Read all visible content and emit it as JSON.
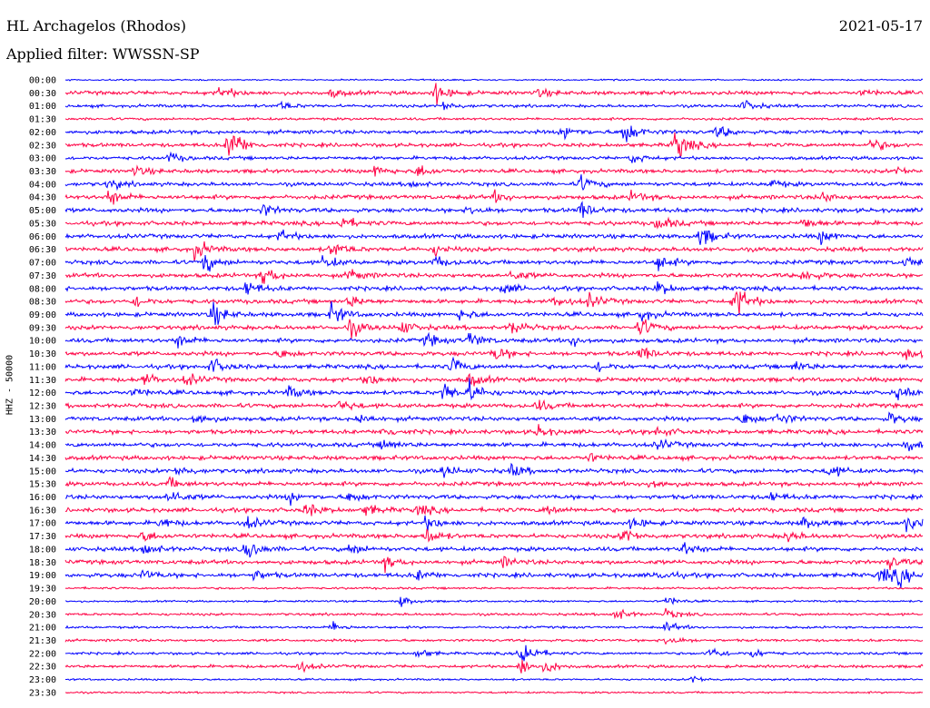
{
  "header": {
    "station": "HL Archagelos (Rhodos)",
    "filter": "Applied filter: WWSSN-SP",
    "date": "2021-05-17"
  },
  "chart_data": {
    "type": "line",
    "title": "HL Archagelos (Rhodos)",
    "subtitle": "Applied filter: WWSSN-SP",
    "date": "2021-05-17",
    "ylabel": "HHZ - 50000",
    "xlabel": "",
    "grid": false,
    "trace_colors": [
      "#0000ff",
      "#ff0044"
    ],
    "time_labels": [
      "00:00",
      "00:30",
      "01:00",
      "01:30",
      "02:00",
      "02:30",
      "03:00",
      "03:30",
      "04:00",
      "04:30",
      "05:00",
      "05:30",
      "06:00",
      "06:30",
      "07:00",
      "07:30",
      "08:00",
      "08:30",
      "09:00",
      "09:30",
      "10:00",
      "10:30",
      "11:00",
      "11:30",
      "12:00",
      "12:30",
      "13:00",
      "13:30",
      "14:00",
      "14:30",
      "15:00",
      "15:30",
      "16:00",
      "16:30",
      "17:00",
      "17:30",
      "18:00",
      "18:30",
      "19:00",
      "19:30",
      "20:00",
      "20:30",
      "21:00",
      "21:30",
      "22:00",
      "22:30",
      "23:00",
      "23:30"
    ],
    "x_range_fraction": [
      0,
      1
    ],
    "noise_level_by_row": [
      0.35,
      0.9,
      0.7,
      0.6,
      0.9,
      0.9,
      0.8,
      0.9,
      0.9,
      1.0,
      1.0,
      1.0,
      1.0,
      1.0,
      1.0,
      1.0,
      1.0,
      1.0,
      1.0,
      1.0,
      1.0,
      1.0,
      1.0,
      1.0,
      1.0,
      1.0,
      1.0,
      1.0,
      1.0,
      1.0,
      1.0,
      1.0,
      1.0,
      1.0,
      1.0,
      1.0,
      1.0,
      1.0,
      1.0,
      0.5,
      0.45,
      0.6,
      0.55,
      0.6,
      0.6,
      0.7,
      0.45,
      0.45
    ],
    "events": [
      {
        "row": 1,
        "t": 0.18,
        "amp": 1.6
      },
      {
        "row": 1,
        "t": 0.31,
        "amp": 1.0
      },
      {
        "row": 1,
        "t": 0.43,
        "amp": 2.6
      },
      {
        "row": 1,
        "t": 0.55,
        "amp": 1.0
      },
      {
        "row": 1,
        "t": 0.93,
        "amp": 0.8
      },
      {
        "row": 2,
        "t": 0.25,
        "amp": 1.0
      },
      {
        "row": 2,
        "t": 0.44,
        "amp": 1.3
      },
      {
        "row": 2,
        "t": 0.79,
        "amp": 1.5
      },
      {
        "row": 4,
        "t": 0.58,
        "amp": 2.0
      },
      {
        "row": 4,
        "t": 0.65,
        "amp": 3.5
      },
      {
        "row": 4,
        "t": 0.76,
        "amp": 1.6
      },
      {
        "row": 5,
        "t": 0.19,
        "amp": 5.5
      },
      {
        "row": 5,
        "t": 0.71,
        "amp": 4.5
      },
      {
        "row": 5,
        "t": 0.94,
        "amp": 1.6
      },
      {
        "row": 6,
        "t": 0.12,
        "amp": 1.3
      },
      {
        "row": 6,
        "t": 0.66,
        "amp": 1.3
      },
      {
        "row": 7,
        "t": 0.08,
        "amp": 1.2
      },
      {
        "row": 7,
        "t": 0.36,
        "amp": 1.4
      },
      {
        "row": 7,
        "t": 0.41,
        "amp": 1.6
      },
      {
        "row": 7,
        "t": 0.97,
        "amp": 1.0
      },
      {
        "row": 8,
        "t": 0.05,
        "amp": 1.3
      },
      {
        "row": 8,
        "t": 0.4,
        "amp": 1.1
      },
      {
        "row": 8,
        "t": 0.6,
        "amp": 2.0
      },
      {
        "row": 8,
        "t": 0.82,
        "amp": 1.2
      },
      {
        "row": 9,
        "t": 0.05,
        "amp": 2.0
      },
      {
        "row": 9,
        "t": 0.5,
        "amp": 1.3
      },
      {
        "row": 9,
        "t": 0.66,
        "amp": 1.4
      },
      {
        "row": 9,
        "t": 0.88,
        "amp": 1.3
      },
      {
        "row": 10,
        "t": 0.23,
        "amp": 1.4
      },
      {
        "row": 10,
        "t": 0.47,
        "amp": 1.4
      },
      {
        "row": 10,
        "t": 0.6,
        "amp": 2.0
      },
      {
        "row": 11,
        "t": 0.32,
        "amp": 1.8
      },
      {
        "row": 11,
        "t": 0.69,
        "amp": 2.0
      },
      {
        "row": 11,
        "t": 0.86,
        "amp": 1.4
      },
      {
        "row": 12,
        "t": 0.25,
        "amp": 1.4
      },
      {
        "row": 12,
        "t": 0.74,
        "amp": 2.6
      },
      {
        "row": 12,
        "t": 0.88,
        "amp": 1.6
      },
      {
        "row": 13,
        "t": 0.15,
        "amp": 2.5
      },
      {
        "row": 13,
        "t": 0.31,
        "amp": 2.0
      },
      {
        "row": 13,
        "t": 0.43,
        "amp": 1.3
      },
      {
        "row": 14,
        "t": 0.16,
        "amp": 2.5
      },
      {
        "row": 14,
        "t": 0.3,
        "amp": 1.7
      },
      {
        "row": 14,
        "t": 0.43,
        "amp": 1.4
      },
      {
        "row": 14,
        "t": 0.69,
        "amp": 2.0
      },
      {
        "row": 14,
        "t": 0.98,
        "amp": 1.3
      },
      {
        "row": 15,
        "t": 0.23,
        "amp": 2.4
      },
      {
        "row": 15,
        "t": 0.33,
        "amp": 1.7
      },
      {
        "row": 15,
        "t": 0.52,
        "amp": 1.3
      },
      {
        "row": 15,
        "t": 0.86,
        "amp": 1.8
      },
      {
        "row": 16,
        "t": 0.21,
        "amp": 2.0
      },
      {
        "row": 16,
        "t": 0.51,
        "amp": 1.3
      },
      {
        "row": 16,
        "t": 0.69,
        "amp": 1.7
      },
      {
        "row": 17,
        "t": 0.08,
        "amp": 1.4
      },
      {
        "row": 17,
        "t": 0.33,
        "amp": 1.4
      },
      {
        "row": 17,
        "t": 0.57,
        "amp": 1.4
      },
      {
        "row": 17,
        "t": 0.61,
        "amp": 1.7
      },
      {
        "row": 17,
        "t": 0.78,
        "amp": 4.5
      },
      {
        "row": 18,
        "t": 0.17,
        "amp": 3.0
      },
      {
        "row": 18,
        "t": 0.31,
        "amp": 2.6
      },
      {
        "row": 18,
        "t": 0.46,
        "amp": 1.5
      },
      {
        "row": 18,
        "t": 0.67,
        "amp": 1.4
      },
      {
        "row": 19,
        "t": 0.33,
        "amp": 2.3
      },
      {
        "row": 19,
        "t": 0.39,
        "amp": 1.8
      },
      {
        "row": 19,
        "t": 0.52,
        "amp": 1.8
      },
      {
        "row": 19,
        "t": 0.67,
        "amp": 2.3
      },
      {
        "row": 20,
        "t": 0.13,
        "amp": 1.6
      },
      {
        "row": 20,
        "t": 0.42,
        "amp": 1.6
      },
      {
        "row": 20,
        "t": 0.47,
        "amp": 2.0
      },
      {
        "row": 20,
        "t": 0.59,
        "amp": 1.4
      },
      {
        "row": 21,
        "t": 0.25,
        "amp": 1.2
      },
      {
        "row": 21,
        "t": 0.5,
        "amp": 2.0
      },
      {
        "row": 21,
        "t": 0.67,
        "amp": 1.8
      },
      {
        "row": 21,
        "t": 0.98,
        "amp": 1.3
      },
      {
        "row": 22,
        "t": 0.17,
        "amp": 2.0
      },
      {
        "row": 22,
        "t": 0.45,
        "amp": 2.0
      },
      {
        "row": 22,
        "t": 0.62,
        "amp": 1.2
      },
      {
        "row": 22,
        "t": 0.85,
        "amp": 1.3
      },
      {
        "row": 23,
        "t": 0.09,
        "amp": 1.5
      },
      {
        "row": 23,
        "t": 0.14,
        "amp": 1.5
      },
      {
        "row": 23,
        "t": 0.35,
        "amp": 1.5
      },
      {
        "row": 23,
        "t": 0.47,
        "amp": 1.8
      },
      {
        "row": 24,
        "t": 0.08,
        "amp": 1.2
      },
      {
        "row": 24,
        "t": 0.26,
        "amp": 1.4
      },
      {
        "row": 24,
        "t": 0.44,
        "amp": 2.6
      },
      {
        "row": 24,
        "t": 0.47,
        "amp": 2.6
      },
      {
        "row": 24,
        "t": 0.97,
        "amp": 1.4
      },
      {
        "row": 25,
        "t": 0.32,
        "amp": 1.4
      },
      {
        "row": 25,
        "t": 0.55,
        "amp": 1.3
      },
      {
        "row": 26,
        "t": 0.15,
        "amp": 1.5
      },
      {
        "row": 26,
        "t": 0.34,
        "amp": 1.4
      },
      {
        "row": 26,
        "t": 0.79,
        "amp": 1.8
      },
      {
        "row": 26,
        "t": 0.83,
        "amp": 1.5
      },
      {
        "row": 26,
        "t": 0.96,
        "amp": 1.5
      },
      {
        "row": 27,
        "t": 0.37,
        "amp": 1.3
      },
      {
        "row": 27,
        "t": 0.55,
        "amp": 1.5
      },
      {
        "row": 27,
        "t": 0.69,
        "amp": 1.4
      },
      {
        "row": 28,
        "t": 0.37,
        "amp": 1.5
      },
      {
        "row": 28,
        "t": 0.69,
        "amp": 1.3
      },
      {
        "row": 28,
        "t": 0.98,
        "amp": 1.8
      },
      {
        "row": 29,
        "t": 0.61,
        "amp": 1.0
      },
      {
        "row": 30,
        "t": 0.13,
        "amp": 1.3
      },
      {
        "row": 30,
        "t": 0.44,
        "amp": 1.5
      },
      {
        "row": 30,
        "t": 0.52,
        "amp": 1.5
      },
      {
        "row": 30,
        "t": 0.89,
        "amp": 1.7
      },
      {
        "row": 31,
        "t": 0.12,
        "amp": 1.2
      },
      {
        "row": 31,
        "t": 0.68,
        "amp": 1.5
      },
      {
        "row": 32,
        "t": 0.12,
        "amp": 2.0
      },
      {
        "row": 32,
        "t": 0.26,
        "amp": 1.3
      },
      {
        "row": 32,
        "t": 0.33,
        "amp": 1.4
      },
      {
        "row": 32,
        "t": 0.82,
        "amp": 1.2
      },
      {
        "row": 33,
        "t": 0.28,
        "amp": 1.7
      },
      {
        "row": 33,
        "t": 0.35,
        "amp": 1.4
      },
      {
        "row": 33,
        "t": 0.41,
        "amp": 1.5
      },
      {
        "row": 33,
        "t": 0.56,
        "amp": 1.3
      },
      {
        "row": 34,
        "t": 0.11,
        "amp": 1.3
      },
      {
        "row": 34,
        "t": 0.21,
        "amp": 1.6
      },
      {
        "row": 34,
        "t": 0.42,
        "amp": 1.7
      },
      {
        "row": 34,
        "t": 0.66,
        "amp": 1.5
      },
      {
        "row": 34,
        "t": 0.86,
        "amp": 1.6
      },
      {
        "row": 34,
        "t": 0.98,
        "amp": 2.0
      },
      {
        "row": 35,
        "t": 0.09,
        "amp": 1.4
      },
      {
        "row": 35,
        "t": 0.42,
        "amp": 2.0
      },
      {
        "row": 35,
        "t": 0.65,
        "amp": 2.0
      },
      {
        "row": 35,
        "t": 0.84,
        "amp": 1.4
      },
      {
        "row": 36,
        "t": 0.09,
        "amp": 2.0
      },
      {
        "row": 36,
        "t": 0.21,
        "amp": 3.0
      },
      {
        "row": 36,
        "t": 0.33,
        "amp": 1.5
      },
      {
        "row": 36,
        "t": 0.72,
        "amp": 1.8
      },
      {
        "row": 37,
        "t": 0.37,
        "amp": 1.7
      },
      {
        "row": 37,
        "t": 0.51,
        "amp": 1.2
      },
      {
        "row": 37,
        "t": 0.96,
        "amp": 1.6
      },
      {
        "row": 38,
        "t": 0.09,
        "amp": 1.2
      },
      {
        "row": 38,
        "t": 0.22,
        "amp": 1.2
      },
      {
        "row": 38,
        "t": 0.41,
        "amp": 1.3
      },
      {
        "row": 38,
        "t": 0.69,
        "amp": 1.4
      },
      {
        "row": 38,
        "t": 0.95,
        "amp": 2.2
      },
      {
        "row": 38,
        "t": 0.97,
        "amp": 2.2
      },
      {
        "row": 40,
        "t": 0.39,
        "amp": 1.4
      },
      {
        "row": 40,
        "t": 0.7,
        "amp": 1.3
      },
      {
        "row": 41,
        "t": 0.64,
        "amp": 1.8
      },
      {
        "row": 41,
        "t": 0.7,
        "amp": 1.3
      },
      {
        "row": 42,
        "t": 0.31,
        "amp": 1.3
      },
      {
        "row": 42,
        "t": 0.7,
        "amp": 1.3
      },
      {
        "row": 43,
        "t": 0.7,
        "amp": 1.7
      },
      {
        "row": 44,
        "t": 0.41,
        "amp": 1.3
      },
      {
        "row": 44,
        "t": 0.53,
        "amp": 4.5
      },
      {
        "row": 44,
        "t": 0.75,
        "amp": 1.8
      },
      {
        "row": 44,
        "t": 0.8,
        "amp": 1.2
      },
      {
        "row": 45,
        "t": 0.27,
        "amp": 1.6
      },
      {
        "row": 45,
        "t": 0.53,
        "amp": 2.0
      },
      {
        "row": 45,
        "t": 0.56,
        "amp": 1.5
      },
      {
        "row": 46,
        "t": 0.73,
        "amp": 1.0
      }
    ]
  }
}
